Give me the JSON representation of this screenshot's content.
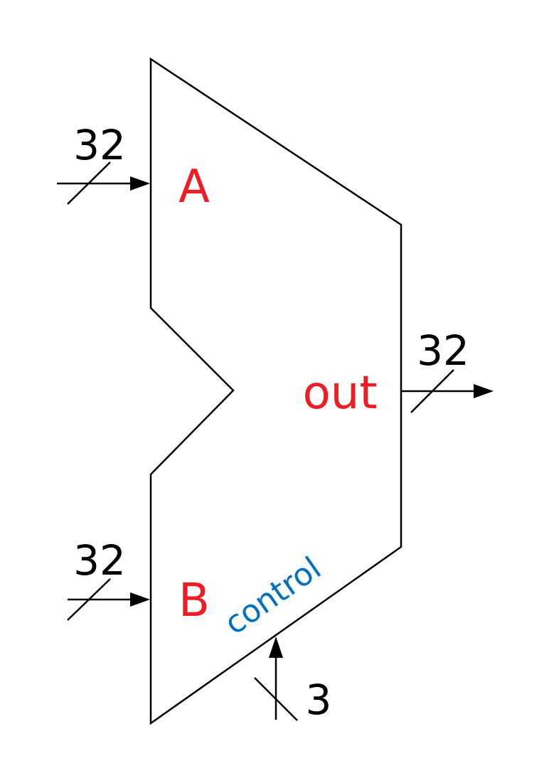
{
  "alu": {
    "input_a_label": "A",
    "input_b_label": "B",
    "output_label": "out",
    "control_label": "control"
  },
  "buses": {
    "input_a_width": "32",
    "input_b_width": "32",
    "output_width": "32",
    "control_width": "3"
  },
  "colors": {
    "port_label": "#ee1c25",
    "control_label": "#0070c0",
    "stroke": "#000000"
  }
}
